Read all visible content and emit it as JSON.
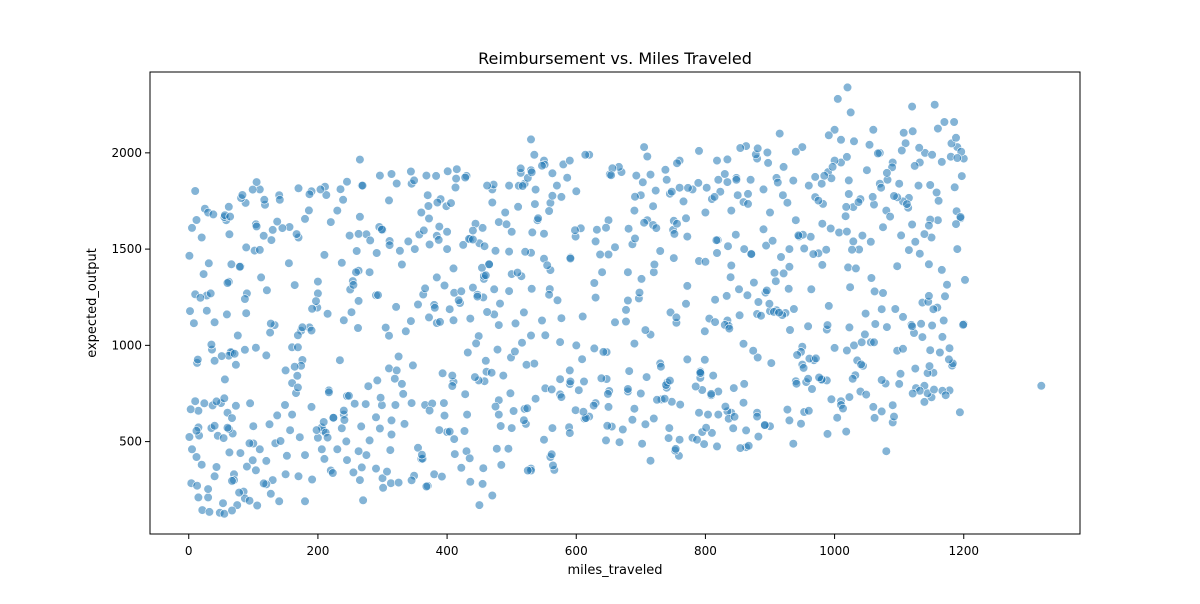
{
  "chart_data": {
    "type": "scatter",
    "title": "Reimbursement vs. Miles Traveled",
    "xlabel": "miles_traveled",
    "ylabel": "expected_output",
    "xlim": [
      -60,
      1380
    ],
    "ylim": [
      20,
      2420
    ],
    "xticks": [
      0,
      200,
      400,
      600,
      800,
      1000,
      1200
    ],
    "yticks": [
      500,
      1000,
      1500,
      2000
    ],
    "grid": false,
    "legend": "none",
    "marker_color": "#1f77b4",
    "marker_alpha": 0.55,
    "seed": 20240521,
    "n_points": 1000,
    "points": [
      [
        1320,
        790
      ],
      [
        5,
        1610
      ],
      [
        8,
        1115
      ],
      [
        10,
        1265
      ],
      [
        12,
        420
      ],
      [
        15,
        210
      ],
      [
        20,
        1560
      ],
      [
        25,
        1710
      ],
      [
        30,
        1690
      ],
      [
        35,
        570
      ],
      [
        38,
        1680
      ],
      [
        40,
        920
      ],
      [
        45,
        530
      ],
      [
        48,
        130
      ],
      [
        55,
        125
      ],
      [
        58,
        1650
      ],
      [
        62,
        1720
      ],
      [
        70,
        330
      ],
      [
        80,
        1410
      ],
      [
        88,
        1740
      ],
      [
        90,
        1270
      ],
      [
        100,
        490
      ],
      [
        110,
        1810
      ],
      [
        118,
        1730
      ],
      [
        125,
        590
      ],
      [
        130,
        1600
      ],
      [
        140,
        1780
      ],
      [
        150,
        870
      ],
      [
        160,
        990
      ],
      [
        170,
        1560
      ],
      [
        180,
        190
      ],
      [
        190,
        1800
      ],
      [
        200,
        1270
      ],
      [
        210,
        1470
      ],
      [
        220,
        1640
      ],
      [
        230,
        1700
      ],
      [
        240,
        1130
      ],
      [
        250,
        1290
      ],
      [
        260,
        1490
      ],
      [
        265,
        1965
      ],
      [
        268,
        1830
      ],
      [
        270,
        195
      ],
      [
        280,
        1380
      ],
      [
        290,
        1260
      ],
      [
        300,
        1600
      ],
      [
        310,
        1050
      ],
      [
        320,
        690
      ],
      [
        330,
        1420
      ],
      [
        340,
        1540
      ],
      [
        345,
        1840
      ],
      [
        350,
        1500
      ],
      [
        360,
        1690
      ],
      [
        370,
        1780
      ],
      [
        380,
        1210
      ],
      [
        390,
        1760
      ],
      [
        400,
        1590
      ],
      [
        410,
        1400
      ],
      [
        415,
        1915
      ],
      [
        420,
        1220
      ],
      [
        430,
        1880
      ],
      [
        440,
        1300
      ],
      [
        450,
        1530
      ],
      [
        455,
        1610
      ],
      [
        460,
        920
      ],
      [
        465,
        1420
      ],
      [
        470,
        1810
      ],
      [
        480,
        1640
      ],
      [
        490,
        1690
      ],
      [
        500,
        1590
      ],
      [
        510,
        1720
      ],
      [
        520,
        1840
      ],
      [
        525,
        1870
      ],
      [
        530,
        2070
      ],
      [
        535,
        1990
      ],
      [
        540,
        1650
      ],
      [
        550,
        1450
      ],
      [
        560,
        1740
      ],
      [
        570,
        1830
      ],
      [
        580,
        1940
      ],
      [
        590,
        1960
      ],
      [
        600,
        1800
      ],
      [
        610,
        1150
      ],
      [
        620,
        1990
      ],
      [
        630,
        1540
      ],
      [
        640,
        1380
      ],
      [
        650,
        1650
      ],
      [
        660,
        1510
      ],
      [
        670,
        1900
      ],
      [
        680,
        1380
      ],
      [
        690,
        1700
      ],
      [
        700,
        1780
      ],
      [
        705,
        2030
      ],
      [
        710,
        1650
      ],
      [
        720,
        1380
      ],
      [
        730,
        1490
      ],
      [
        740,
        1860
      ],
      [
        750,
        1600
      ],
      [
        760,
        1960
      ],
      [
        770,
        1660
      ],
      [
        780,
        1810
      ],
      [
        790,
        2010
      ],
      [
        800,
        1690
      ],
      [
        810,
        1760
      ],
      [
        820,
        1860
      ],
      [
        830,
        1890
      ],
      [
        840,
        1700
      ],
      [
        850,
        1780
      ],
      [
        860,
        1500
      ],
      [
        870,
        1860
      ],
      [
        880,
        1970
      ],
      [
        890,
        1810
      ],
      [
        900,
        1690
      ],
      [
        910,
        1870
      ],
      [
        915,
        2100
      ],
      [
        920,
        1780
      ],
      [
        930,
        1500
      ],
      [
        940,
        1650
      ],
      [
        950,
        2030
      ],
      [
        960,
        1830
      ],
      [
        970,
        1770
      ],
      [
        980,
        1840
      ],
      [
        990,
        1900
      ],
      [
        1000,
        2120
      ],
      [
        1005,
        2280
      ],
      [
        1010,
        1950
      ],
      [
        1020,
        2340
      ],
      [
        1025,
        2210
      ],
      [
        1030,
        2060
      ],
      [
        1040,
        1760
      ],
      [
        1050,
        1910
      ],
      [
        1060,
        2120
      ],
      [
        1070,
        1840
      ],
      [
        1080,
        1700
      ],
      [
        1090,
        1950
      ],
      [
        1100,
        1840
      ],
      [
        1110,
        2050
      ],
      [
        1120,
        2240
      ],
      [
        1130,
        1830
      ],
      [
        1140,
        2000
      ],
      [
        1150,
        1560
      ],
      [
        1155,
        2250
      ],
      [
        1160,
        1650
      ],
      [
        1170,
        2160
      ],
      [
        1180,
        1980
      ],
      [
        1185,
        2160
      ],
      [
        1190,
        2030
      ],
      [
        1195,
        1660
      ],
      [
        1200,
        1970
      ],
      [
        1202,
        1340
      ],
      [
        1200,
        1110
      ],
      [
        1190,
        1500
      ],
      [
        1150,
        730
      ],
      [
        1100,
        800
      ],
      [
        1090,
        600
      ],
      [
        1080,
        450
      ],
      [
        1060,
        680
      ],
      [
        1040,
        760
      ],
      [
        1030,
        1000
      ],
      [
        1010,
        710
      ],
      [
        995,
        720
      ],
      [
        980,
        820
      ],
      [
        950,
        900
      ],
      [
        930,
        610
      ],
      [
        900,
        580
      ],
      [
        880,
        650
      ],
      [
        860,
        800
      ],
      [
        840,
        650
      ],
      [
        820,
        640
      ],
      [
        810,
        545
      ],
      [
        795,
        550
      ],
      [
        790,
        650
      ],
      [
        780,
        520
      ],
      [
        760,
        510
      ],
      [
        740,
        780
      ],
      [
        720,
        620
      ],
      [
        700,
        750
      ],
      [
        680,
        760
      ],
      [
        660,
        1120
      ],
      [
        650,
        680
      ],
      [
        630,
        700
      ],
      [
        620,
        630
      ],
      [
        600,
        1000
      ],
      [
        590,
        870
      ],
      [
        575,
        745
      ],
      [
        560,
        420
      ],
      [
        550,
        510
      ],
      [
        530,
        360
      ],
      [
        520,
        670
      ],
      [
        500,
        570
      ],
      [
        480,
        640
      ],
      [
        470,
        220
      ],
      [
        455,
        280
      ],
      [
        450,
        170
      ],
      [
        430,
        450
      ],
      [
        410,
        810
      ],
      [
        400,
        550
      ],
      [
        380,
        330
      ],
      [
        370,
        270
      ],
      [
        360,
        410
      ],
      [
        345,
        700
      ],
      [
        330,
        800
      ],
      [
        310,
        880
      ],
      [
        300,
        310
      ],
      [
        290,
        360
      ],
      [
        275,
        430
      ],
      [
        265,
        300
      ],
      [
        255,
        340
      ],
      [
        240,
        640
      ],
      [
        230,
        460
      ],
      [
        220,
        350
      ],
      [
        210,
        410
      ],
      [
        200,
        520
      ],
      [
        190,
        680
      ],
      [
        180,
        430
      ],
      [
        170,
        320
      ],
      [
        160,
        640
      ],
      [
        150,
        330
      ],
      [
        140,
        190
      ],
      [
        130,
        300
      ],
      [
        120,
        400
      ],
      [
        110,
        460
      ],
      [
        100,
        580
      ],
      [
        90,
        370
      ],
      [
        85,
        240
      ],
      [
        80,
        440
      ],
      [
        75,
        170
      ],
      [
        70,
        300
      ],
      [
        60,
        650
      ],
      [
        50,
        700
      ],
      [
        40,
        320
      ],
      [
        30,
        210
      ],
      [
        20,
        380
      ],
      [
        15,
        660
      ],
      [
        10,
        710
      ],
      [
        5,
        460
      ]
    ]
  }
}
